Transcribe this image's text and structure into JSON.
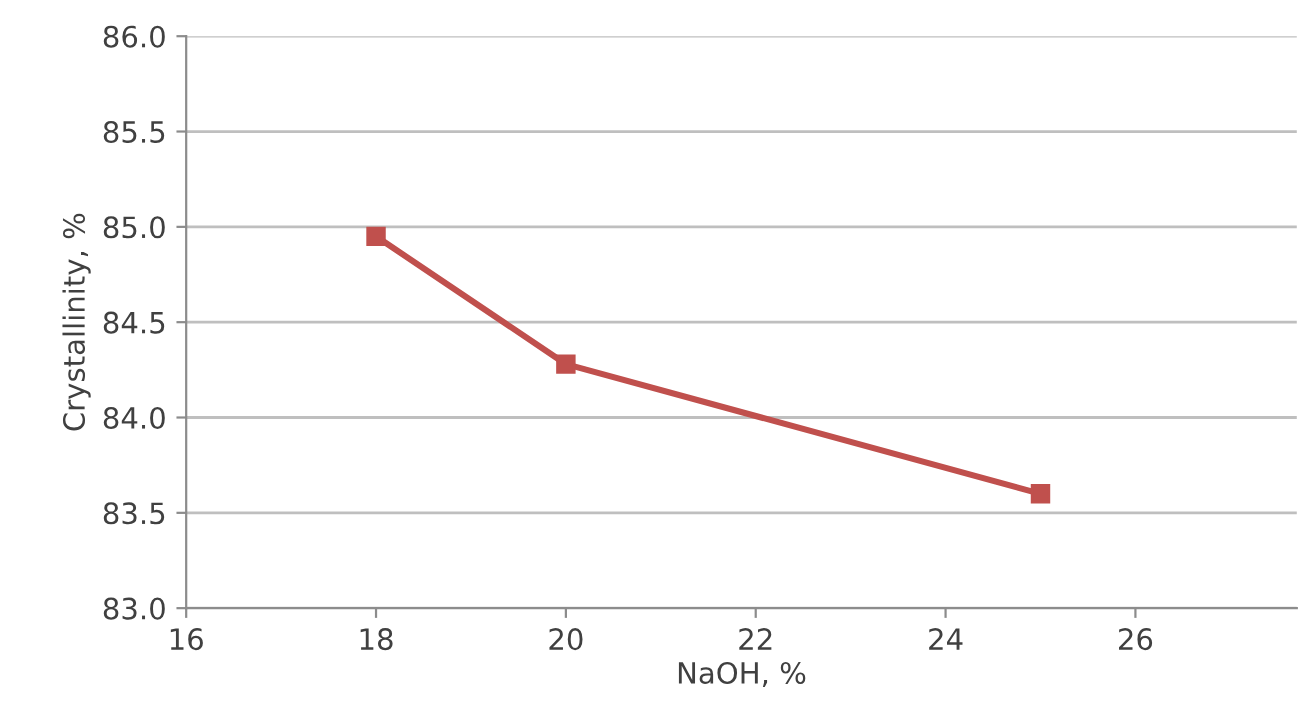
{
  "chart_data": {
    "type": "line",
    "xlabel": "NaOH, %",
    "ylabel": "Crystallinity, %",
    "x": [
      18,
      20,
      25
    ],
    "series": [
      {
        "color": "#c0504d",
        "values": [
          84.95,
          84.28,
          83.6
        ]
      }
    ],
    "xlim": [
      16,
      27.7
    ],
    "xticks": [
      16,
      18,
      20,
      22,
      24,
      26
    ],
    "ylim": [
      83.0,
      86.0
    ],
    "yticks": [
      {
        "value": 83.0,
        "label": "83.0"
      },
      {
        "value": 83.5,
        "label": "83.5"
      },
      {
        "value": 84.0,
        "label": "84.0"
      },
      {
        "value": 84.5,
        "label": "84.5"
      },
      {
        "value": 85.0,
        "label": "85.0"
      },
      {
        "value": 85.5,
        "label": "85.5"
      },
      {
        "value": 86.0,
        "label": "86.0"
      }
    ],
    "grid": "y",
    "marker": "square",
    "line_style": "solid"
  }
}
